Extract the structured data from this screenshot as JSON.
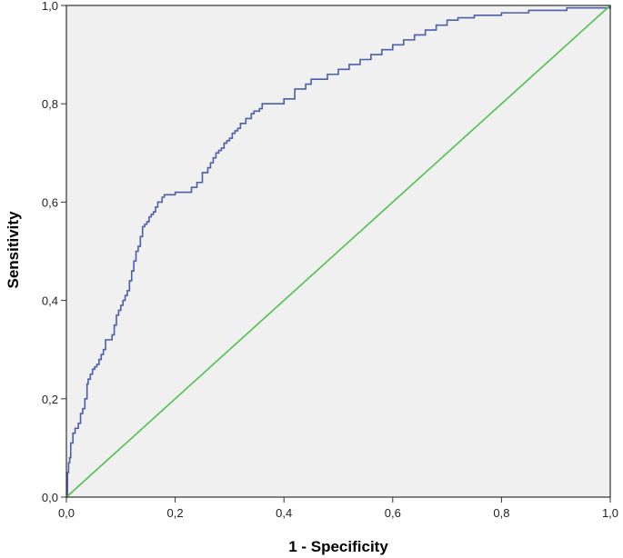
{
  "chart_data": {
    "type": "line",
    "title": "",
    "xlabel": "1 - Specificity",
    "ylabel": "Sensitivity",
    "xlim": [
      0,
      1
    ],
    "ylim": [
      0,
      1
    ],
    "x_ticks": [
      "0,0",
      "0,2",
      "0,4",
      "0,6",
      "0,8",
      "1,0"
    ],
    "y_ticks": [
      "0,0",
      "0,2",
      "0,4",
      "0,6",
      "0,8",
      "1,0"
    ],
    "grid": false,
    "legend": "none",
    "plot_background": "#f0f0f0",
    "series": [
      {
        "color": "#4b5ea8",
        "style": "step",
        "x": [
          0.0,
          0.002,
          0.004,
          0.006,
          0.008,
          0.012,
          0.016,
          0.022,
          0.026,
          0.03,
          0.034,
          0.038,
          0.04,
          0.044,
          0.048,
          0.052,
          0.056,
          0.06,
          0.064,
          0.068,
          0.072,
          0.076,
          0.08,
          0.084,
          0.088,
          0.092,
          0.096,
          0.1,
          0.104,
          0.108,
          0.112,
          0.116,
          0.12,
          0.124,
          0.128,
          0.132,
          0.136,
          0.14,
          0.144,
          0.148,
          0.152,
          0.156,
          0.16,
          0.164,
          0.168,
          0.172,
          0.176,
          0.18,
          0.184,
          0.188,
          0.192,
          0.196,
          0.2,
          0.21,
          0.22,
          0.23,
          0.24,
          0.25,
          0.26,
          0.265,
          0.27,
          0.275,
          0.28,
          0.285,
          0.29,
          0.295,
          0.3,
          0.305,
          0.31,
          0.315,
          0.32,
          0.33,
          0.34,
          0.345,
          0.35,
          0.355,
          0.36,
          0.37,
          0.38,
          0.39,
          0.4,
          0.42,
          0.44,
          0.45,
          0.46,
          0.48,
          0.5,
          0.52,
          0.54,
          0.56,
          0.58,
          0.6,
          0.62,
          0.64,
          0.66,
          0.68,
          0.7,
          0.72,
          0.75,
          0.8,
          0.85,
          0.92,
          1.0
        ],
        "y": [
          0.0,
          0.05,
          0.07,
          0.08,
          0.11,
          0.13,
          0.14,
          0.15,
          0.17,
          0.18,
          0.2,
          0.23,
          0.24,
          0.25,
          0.26,
          0.265,
          0.27,
          0.28,
          0.29,
          0.3,
          0.32,
          0.32,
          0.32,
          0.33,
          0.35,
          0.37,
          0.38,
          0.39,
          0.4,
          0.41,
          0.42,
          0.44,
          0.46,
          0.48,
          0.5,
          0.51,
          0.53,
          0.55,
          0.555,
          0.56,
          0.57,
          0.575,
          0.58,
          0.59,
          0.6,
          0.6,
          0.61,
          0.615,
          0.615,
          0.615,
          0.615,
          0.615,
          0.62,
          0.62,
          0.62,
          0.63,
          0.64,
          0.66,
          0.67,
          0.68,
          0.69,
          0.7,
          0.705,
          0.71,
          0.72,
          0.725,
          0.73,
          0.74,
          0.745,
          0.75,
          0.76,
          0.77,
          0.78,
          0.785,
          0.785,
          0.79,
          0.8,
          0.8,
          0.8,
          0.8,
          0.81,
          0.83,
          0.84,
          0.85,
          0.85,
          0.86,
          0.87,
          0.88,
          0.89,
          0.9,
          0.91,
          0.92,
          0.93,
          0.94,
          0.95,
          0.96,
          0.97,
          0.975,
          0.98,
          0.985,
          0.99,
          0.995,
          1.0
        ]
      },
      {
        "color": "#4ec04e",
        "style": "line",
        "x": [
          0,
          1
        ],
        "y": [
          0,
          1
        ]
      }
    ]
  }
}
